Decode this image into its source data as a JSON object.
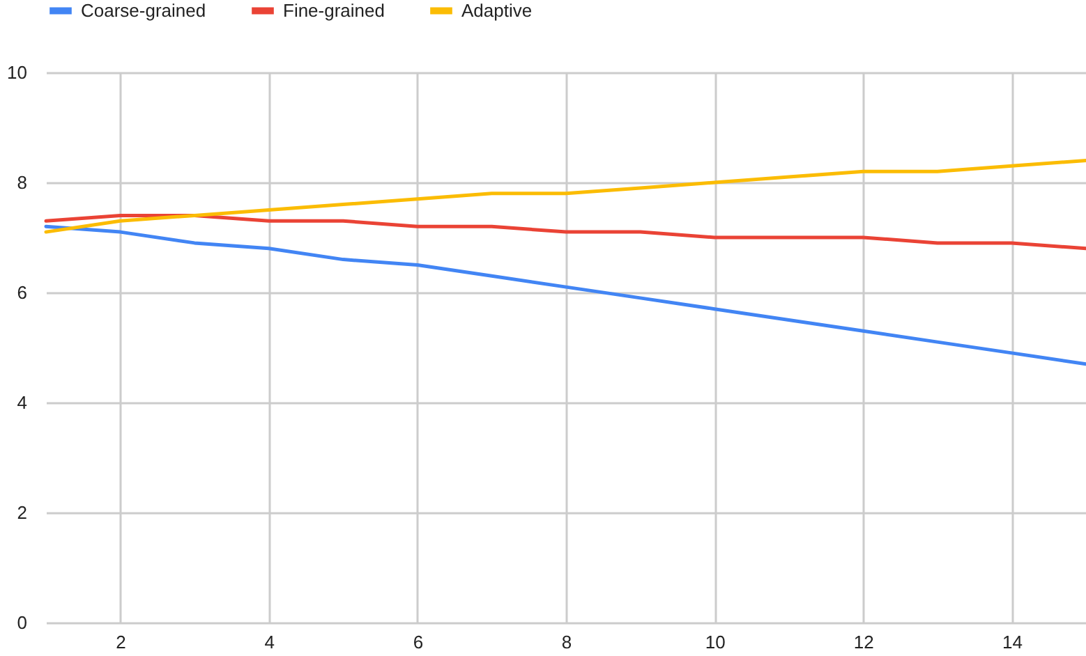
{
  "chart_data": {
    "type": "line",
    "x": [
      1,
      2,
      3,
      4,
      5,
      6,
      7,
      8,
      9,
      10,
      11,
      12,
      13,
      14,
      15
    ],
    "series": [
      {
        "name": "Coarse-grained",
        "color": "#4285f4",
        "values": [
          7.2,
          7.1,
          6.9,
          6.8,
          6.6,
          6.5,
          6.3,
          6.1,
          5.9,
          5.7,
          5.5,
          5.3,
          5.1,
          4.9,
          4.7
        ]
      },
      {
        "name": "Fine-grained",
        "color": "#ea4335",
        "values": [
          7.3,
          7.4,
          7.4,
          7.3,
          7.3,
          7.2,
          7.2,
          7.1,
          7.1,
          7.0,
          7.0,
          7.0,
          6.9,
          6.9,
          6.8
        ]
      },
      {
        "name": "Adaptive",
        "color": "#fbbc04",
        "values": [
          7.1,
          7.3,
          7.4,
          7.5,
          7.6,
          7.7,
          7.8,
          7.8,
          7.9,
          8.0,
          8.1,
          8.2,
          8.2,
          8.3,
          8.4
        ]
      }
    ],
    "xlim": [
      1,
      15
    ],
    "xticks": [
      2,
      4,
      6,
      8,
      10,
      12,
      14
    ],
    "ylim": [
      0,
      10
    ],
    "yticks": [
      0,
      2,
      4,
      6,
      8,
      10
    ],
    "grid": true,
    "legend": "top",
    "marker": "none",
    "line_style": "solid"
  }
}
